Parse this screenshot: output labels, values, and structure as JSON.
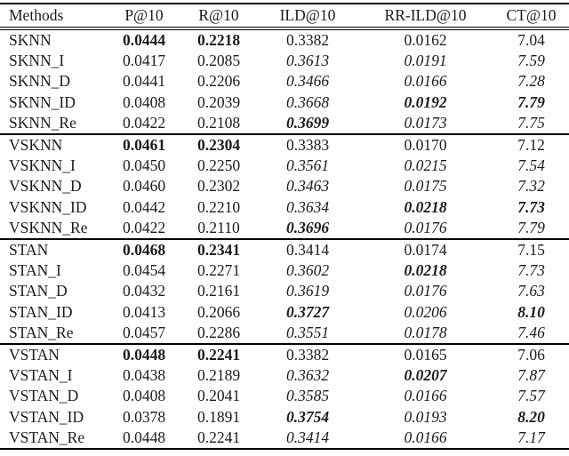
{
  "table": {
    "columns": [
      "Methods",
      "P@10",
      "R@10",
      "ILD@10",
      "RR-ILD@10",
      "CT@10"
    ],
    "groups": [
      {
        "rows": [
          {
            "method": "SKNN",
            "cells": [
              {
                "v": "0.0444",
                "s": "b"
              },
              {
                "v": "0.2218",
                "s": "b"
              },
              {
                "v": "0.3382",
                "s": "n"
              },
              {
                "v": "0.0162",
                "s": "n"
              },
              {
                "v": "7.04",
                "s": "n"
              }
            ]
          },
          {
            "method": "SKNN_I",
            "cells": [
              {
                "v": "0.0417",
                "s": "n"
              },
              {
                "v": "0.2085",
                "s": "n"
              },
              {
                "v": "0.3613",
                "s": "i"
              },
              {
                "v": "0.0191",
                "s": "i"
              },
              {
                "v": "7.59",
                "s": "i"
              }
            ]
          },
          {
            "method": "SKNN_D",
            "cells": [
              {
                "v": "0.0441",
                "s": "n"
              },
              {
                "v": "0.2206",
                "s": "n"
              },
              {
                "v": "0.3466",
                "s": "i"
              },
              {
                "v": "0.0166",
                "s": "i"
              },
              {
                "v": "7.28",
                "s": "i"
              }
            ]
          },
          {
            "method": "SKNN_ID",
            "cells": [
              {
                "v": "0.0408",
                "s": "n"
              },
              {
                "v": "0.2039",
                "s": "n"
              },
              {
                "v": "0.3668",
                "s": "i"
              },
              {
                "v": "0.0192",
                "s": "bi"
              },
              {
                "v": "7.79",
                "s": "bi"
              }
            ]
          },
          {
            "method": "SKNN_Re",
            "cells": [
              {
                "v": "0.0422",
                "s": "n"
              },
              {
                "v": "0.2108",
                "s": "n"
              },
              {
                "v": "0.3699",
                "s": "bi"
              },
              {
                "v": "0.0173",
                "s": "i"
              },
              {
                "v": "7.75",
                "s": "i"
              }
            ]
          }
        ]
      },
      {
        "rows": [
          {
            "method": "VSKNN",
            "cells": [
              {
                "v": "0.0461",
                "s": "b"
              },
              {
                "v": "0.2304",
                "s": "b"
              },
              {
                "v": "0.3383",
                "s": "n"
              },
              {
                "v": "0.0170",
                "s": "n"
              },
              {
                "v": "7.12",
                "s": "n"
              }
            ]
          },
          {
            "method": "VSKNN_I",
            "cells": [
              {
                "v": "0.0450",
                "s": "n"
              },
              {
                "v": "0.2250",
                "s": "n"
              },
              {
                "v": "0.3561",
                "s": "i"
              },
              {
                "v": "0.0215",
                "s": "i"
              },
              {
                "v": "7.54",
                "s": "i"
              }
            ]
          },
          {
            "method": "VSKNN_D",
            "cells": [
              {
                "v": "0.0460",
                "s": "n"
              },
              {
                "v": "0.2302",
                "s": "n"
              },
              {
                "v": "0.3463",
                "s": "i"
              },
              {
                "v": "0.0175",
                "s": "i"
              },
              {
                "v": "7.32",
                "s": "i"
              }
            ]
          },
          {
            "method": "VSKNN_ID",
            "cells": [
              {
                "v": "0.0442",
                "s": "n"
              },
              {
                "v": "0.2210",
                "s": "n"
              },
              {
                "v": "0.3634",
                "s": "i"
              },
              {
                "v": "0.0218",
                "s": "bi"
              },
              {
                "v": "7.73",
                "s": "bi"
              }
            ]
          },
          {
            "method": "VSKNN_Re",
            "cells": [
              {
                "v": "0.0422",
                "s": "n"
              },
              {
                "v": "0.2110",
                "s": "n"
              },
              {
                "v": "0.3696",
                "s": "bi"
              },
              {
                "v": "0.0176",
                "s": "i"
              },
              {
                "v": "7.79",
                "s": "i"
              }
            ]
          }
        ]
      },
      {
        "rows": [
          {
            "method": "STAN",
            "cells": [
              {
                "v": "0.0468",
                "s": "b"
              },
              {
                "v": "0.2341",
                "s": "b"
              },
              {
                "v": "0.3414",
                "s": "n"
              },
              {
                "v": "0.0174",
                "s": "n"
              },
              {
                "v": "7.15",
                "s": "n"
              }
            ]
          },
          {
            "method": "STAN_I",
            "cells": [
              {
                "v": "0.0454",
                "s": "n"
              },
              {
                "v": "0.2271",
                "s": "n"
              },
              {
                "v": "0.3602",
                "s": "i"
              },
              {
                "v": "0.0218",
                "s": "bi"
              },
              {
                "v": "7.73",
                "s": "i"
              }
            ]
          },
          {
            "method": "STAN_D",
            "cells": [
              {
                "v": "0.0432",
                "s": "n"
              },
              {
                "v": "0.2161",
                "s": "n"
              },
              {
                "v": "0.3619",
                "s": "i"
              },
              {
                "v": "0.0176",
                "s": "i"
              },
              {
                "v": "7.63",
                "s": "i"
              }
            ]
          },
          {
            "method": "STAN_ID",
            "cells": [
              {
                "v": "0.0413",
                "s": "n"
              },
              {
                "v": "0.2066",
                "s": "n"
              },
              {
                "v": "0.3727",
                "s": "bi"
              },
              {
                "v": "0.0206",
                "s": "i"
              },
              {
                "v": "8.10",
                "s": "bi"
              }
            ]
          },
          {
            "method": "STAN_Re",
            "cells": [
              {
                "v": "0.0457",
                "s": "n"
              },
              {
                "v": "0.2286",
                "s": "n"
              },
              {
                "v": "0.3551",
                "s": "i"
              },
              {
                "v": "0.0178",
                "s": "i"
              },
              {
                "v": "7.46",
                "s": "i"
              }
            ]
          }
        ]
      },
      {
        "rows": [
          {
            "method": "VSTAN",
            "cells": [
              {
                "v": "0.0448",
                "s": "b"
              },
              {
                "v": "0.2241",
                "s": "b"
              },
              {
                "v": "0.3382",
                "s": "n"
              },
              {
                "v": "0.0165",
                "s": "n"
              },
              {
                "v": "7.06",
                "s": "n"
              }
            ]
          },
          {
            "method": "VSTAN_I",
            "cells": [
              {
                "v": "0.0438",
                "s": "n"
              },
              {
                "v": "0.2189",
                "s": "n"
              },
              {
                "v": "0.3632",
                "s": "i"
              },
              {
                "v": "0.0207",
                "s": "bi"
              },
              {
                "v": "7.87",
                "s": "i"
              }
            ]
          },
          {
            "method": "VSTAN_D",
            "cells": [
              {
                "v": "0.0408",
                "s": "n"
              },
              {
                "v": "0.2041",
                "s": "n"
              },
              {
                "v": "0.3585",
                "s": "i"
              },
              {
                "v": "0.0166",
                "s": "i"
              },
              {
                "v": "7.57",
                "s": "i"
              }
            ]
          },
          {
            "method": "VSTAN_ID",
            "cells": [
              {
                "v": "0.0378",
                "s": "n"
              },
              {
                "v": "0.1891",
                "s": "n"
              },
              {
                "v": "0.3754",
                "s": "bi"
              },
              {
                "v": "0.0193",
                "s": "i"
              },
              {
                "v": "8.20",
                "s": "bi"
              }
            ]
          },
          {
            "method": "VSTAN_Re",
            "cells": [
              {
                "v": "0.0448",
                "s": "n"
              },
              {
                "v": "0.2241",
                "s": "n"
              },
              {
                "v": "0.3414",
                "s": "i"
              },
              {
                "v": "0.0166",
                "s": "i"
              },
              {
                "v": "7.17",
                "s": "i"
              }
            ]
          }
        ]
      }
    ]
  }
}
